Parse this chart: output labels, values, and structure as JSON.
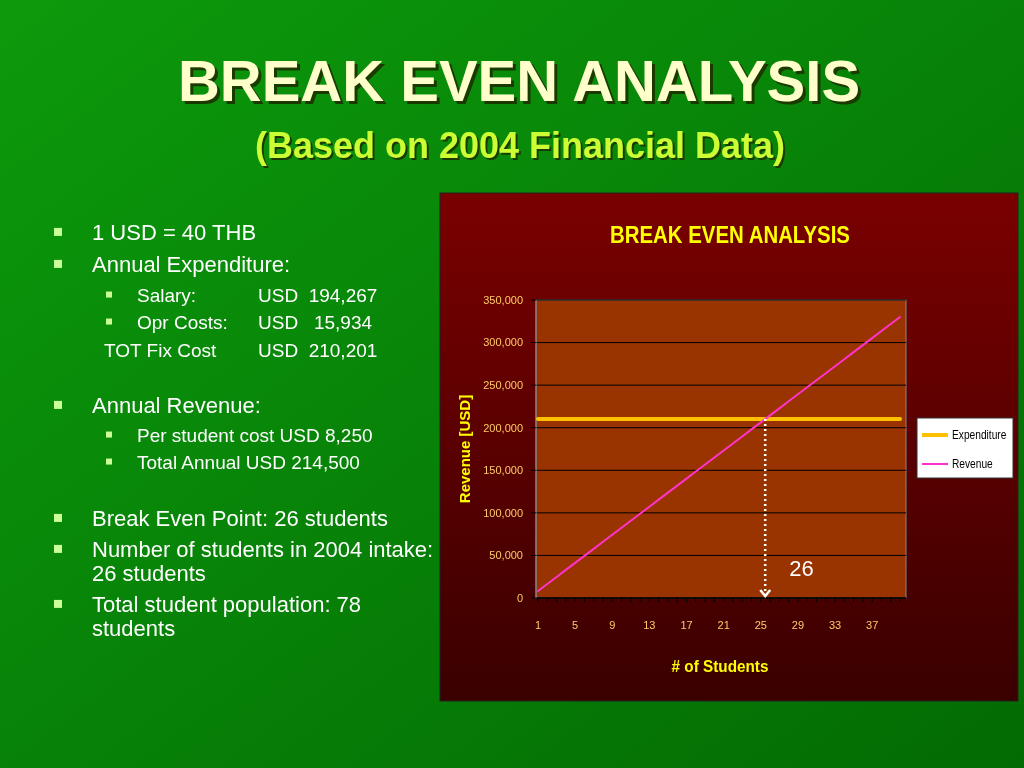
{
  "chart_data": {
    "type": "line",
    "title": "BREAK EVEN ANALYSIS",
    "subtitle": "(Based on 2004 Financial Data)",
    "xlabel": "# of Students",
    "ylabel": "Revenue [USD]",
    "categories": [
      "1",
      null,
      null,
      null,
      "5",
      null,
      null,
      null,
      "9",
      null,
      null,
      null,
      "13",
      null,
      null,
      null,
      "17",
      null,
      null,
      null,
      "21",
      null,
      null,
      null,
      "25",
      null,
      null,
      null,
      "29",
      null,
      null,
      null,
      "33",
      null,
      null,
      null,
      "37",
      null,
      null,
      null
    ],
    "series": [
      {
        "name": "Expenditure",
        "color": "#ffc000",
        "values": [
          210201,
          210201,
          210201,
          210201,
          210201,
          210201,
          210201,
          210201,
          210201,
          210201,
          210201,
          210201,
          210201,
          210201,
          210201,
          210201,
          210201,
          210201,
          210201,
          210201,
          210201,
          210201,
          210201,
          210201,
          210201,
          210201,
          210201,
          210201,
          210201,
          210201,
          210201,
          210201,
          210201,
          210201,
          210201,
          210201,
          210201,
          210201,
          210201,
          210201
        ]
      },
      {
        "name": "Revenue",
        "color": "#ff33cc",
        "values": [
          8250,
          16500,
          24750,
          33000,
          41250,
          49500,
          57750,
          66000,
          74250,
          82500,
          90750,
          99000,
          107250,
          115500,
          123750,
          132000,
          140250,
          148500,
          156750,
          165000,
          173250,
          181500,
          189750,
          198000,
          206250,
          214500,
          222750,
          231000,
          239250,
          247500,
          255750,
          264000,
          272250,
          280500,
          288750,
          297000,
          305250,
          313500,
          321750,
          330000
        ]
      }
    ],
    "ylim": [
      0,
      350000
    ],
    "yticks": [
      0,
      {
        "value": 50000,
        "label": "50,000"
      },
      {
        "value": 100000,
        "label": "100,000"
      },
      {
        "value": 150000,
        "label": "150,000"
      },
      {
        "value": 200000,
        "label": "200,000"
      },
      {
        "value": 250000,
        "label": "250,000"
      },
      {
        "value": 300000,
        "label": "300,000"
      },
      {
        "value": 350000,
        "label": "350,000"
      }
    ],
    "grid": "y",
    "legend": "right",
    "marker": "none",
    "line_style": "solid",
    "annotations": [
      "BREAK EVEN ANALYSIS",
      "1 USD = 40 THB",
      "Annual Expenditure:",
      "Salary:\tUSD  194,267",
      "Opr Costs:\tUSD   15,934",
      "TOT Fix Cost\tUSD  210,201",
      "Annual Revenue:",
      "Per student cost USD 8,250",
      "Total Annual USD 214,500",
      "Break Even Point: 26 students",
      "Number of students in 2004 intake: 26 students",
      "Total student population: 78 students",
      "26"
    ]
  }
}
